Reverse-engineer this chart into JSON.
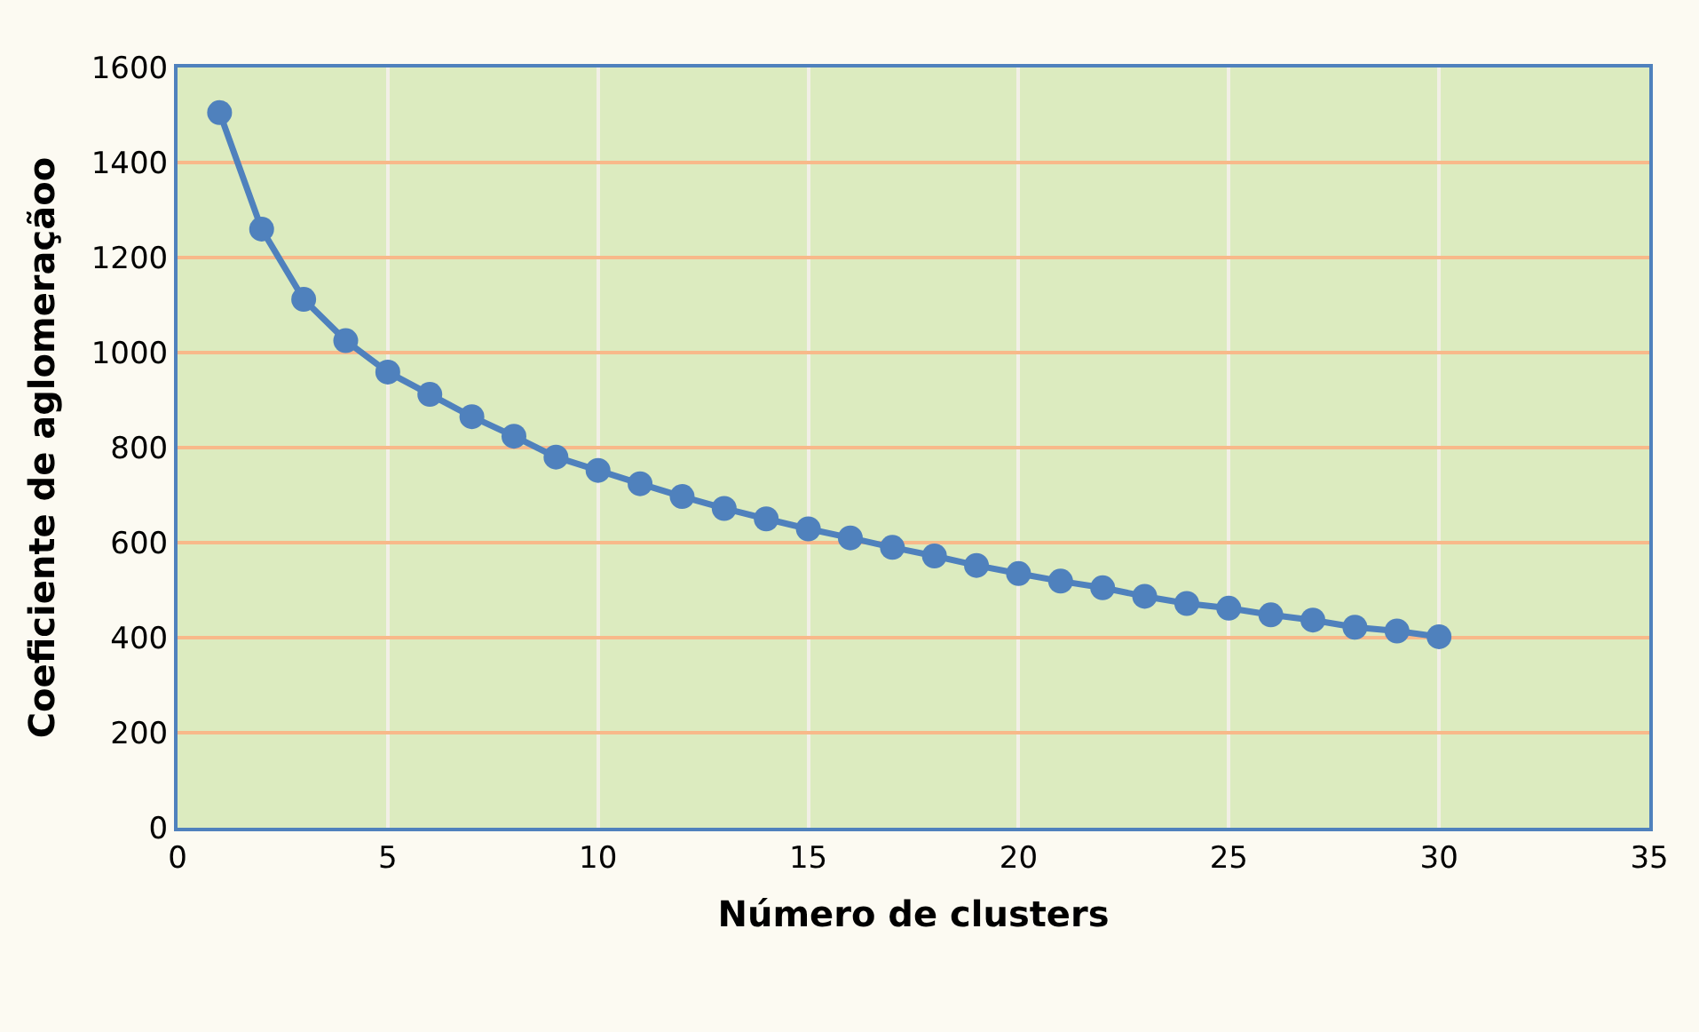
{
  "chart_data": {
    "type": "line",
    "xlabel": "Número de clusters",
    "ylabel": "Coeficiente de aglomeraçãoo",
    "x": [
      1,
      2,
      3,
      4,
      5,
      6,
      7,
      8,
      9,
      10,
      11,
      12,
      13,
      14,
      15,
      16,
      17,
      18,
      19,
      20,
      21,
      22,
      23,
      24,
      25,
      26,
      27,
      28,
      29,
      30
    ],
    "series": [
      {
        "color": "#4f81bd",
        "values": [
          1505,
          1260,
          1112,
          1025,
          959,
          912,
          865,
          824,
          780,
          752,
          724,
          697,
          672,
          650,
          629,
          610,
          590,
          572,
          552,
          535,
          519,
          505,
          487,
          472,
          462,
          448,
          437,
          422,
          414,
          402
        ]
      }
    ],
    "xlim": [
      0,
      35
    ],
    "xticks": [
      0,
      5,
      10,
      15,
      20,
      25,
      30,
      35
    ],
    "ylim": [
      0,
      1600
    ],
    "yticks": [
      0,
      200,
      400,
      600,
      800,
      1000,
      1200,
      1400,
      1600
    ],
    "grid": true,
    "marker": "circle",
    "line_style": "solid",
    "legend": false
  }
}
